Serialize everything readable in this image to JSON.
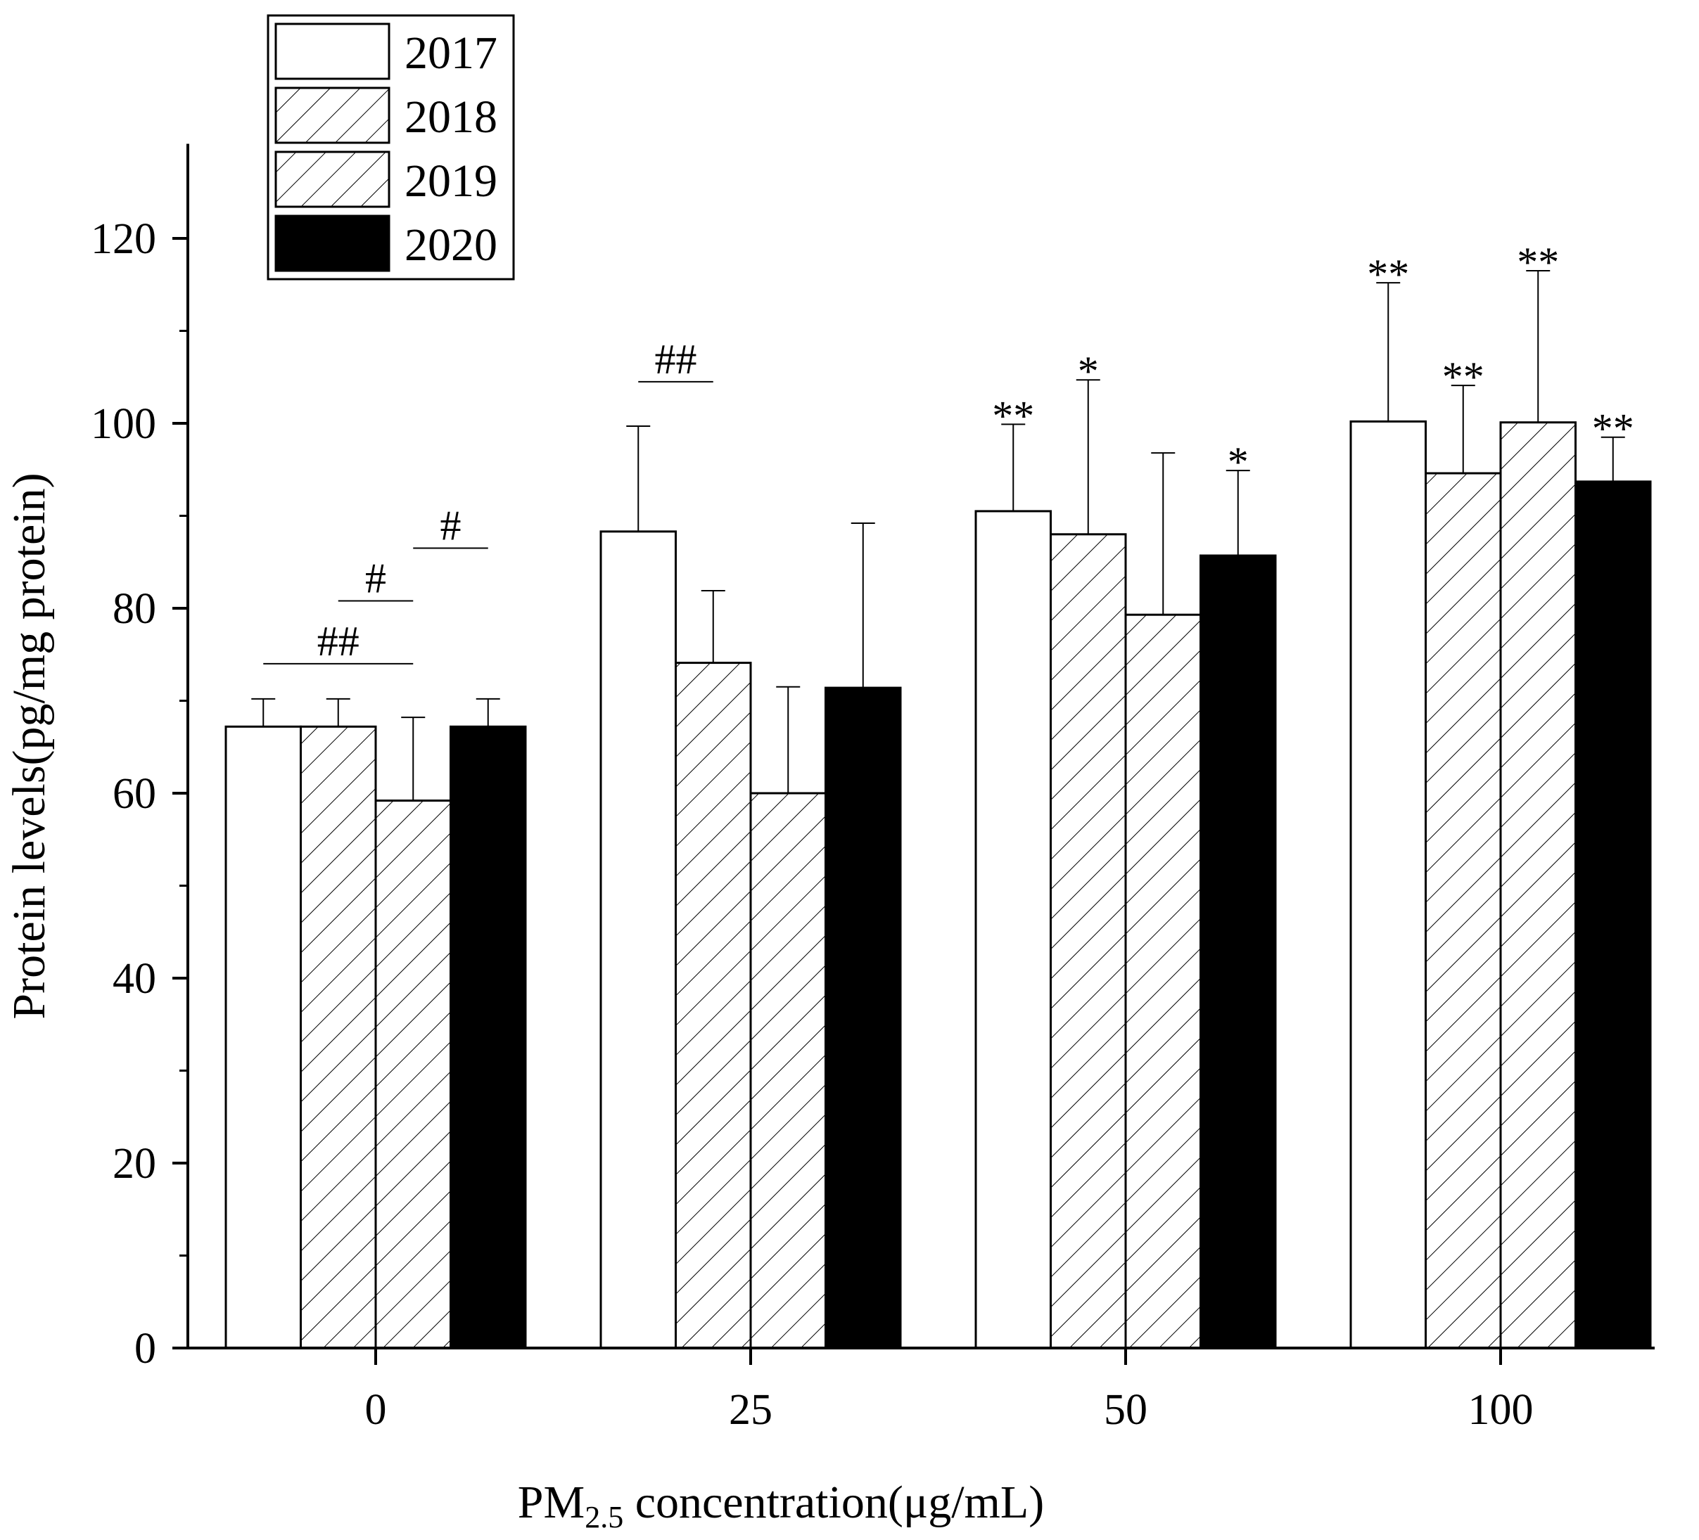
{
  "chart_data": {
    "type": "bar",
    "title": "",
    "xlabel": {
      "prefix": "PM",
      "subscript": "2.5",
      "suffix": " concentration(μg/mL)"
    },
    "ylabel": "Protein levels(pg/mg protein)",
    "ylim": [
      0,
      130
    ],
    "yticks": [
      0,
      20,
      40,
      60,
      80,
      100,
      120
    ],
    "categories": [
      "0",
      "25",
      "50",
      "100"
    ],
    "series": [
      {
        "name": "2017",
        "fill": "white",
        "values": [
          67.2,
          88.3,
          90.5,
          100.2
        ],
        "errors": [
          3.0,
          11.4,
          9.4,
          15.0
        ],
        "labels": [
          "",
          "",
          "**",
          "**"
        ]
      },
      {
        "name": "2018",
        "fill": "hatch",
        "values": [
          67.2,
          74.1,
          88.0,
          94.6
        ],
        "errors": [
          3.0,
          7.8,
          16.7,
          9.5
        ],
        "labels": [
          "",
          "",
          "*",
          "**"
        ]
      },
      {
        "name": "2019",
        "fill": "hatch",
        "values": [
          59.2,
          60.0,
          79.3,
          100.1
        ],
        "errors": [
          9.0,
          11.5,
          17.5,
          16.4
        ],
        "labels": [
          "",
          "",
          "",
          "**"
        ]
      },
      {
        "name": "2020",
        "fill": "black",
        "values": [
          67.2,
          71.4,
          85.7,
          93.7
        ],
        "errors": [
          3.0,
          17.8,
          9.2,
          4.8
        ],
        "labels": [
          "",
          "",
          "*",
          "**"
        ]
      }
    ],
    "annotations": [
      {
        "label": "##",
        "category": 0,
        "from_series": 0,
        "to_series": 2,
        "y": 74.0
      },
      {
        "label": "#",
        "category": 0,
        "from_series": 1,
        "to_series": 2,
        "y": 80.8
      },
      {
        "label": "#",
        "category": 0,
        "from_series": 2,
        "to_series": 3,
        "y": 86.5
      },
      {
        "label": "##",
        "category": 1,
        "from_series": 0,
        "to_series": 1,
        "y": 104.5
      }
    ],
    "legend_position": "top-left"
  }
}
